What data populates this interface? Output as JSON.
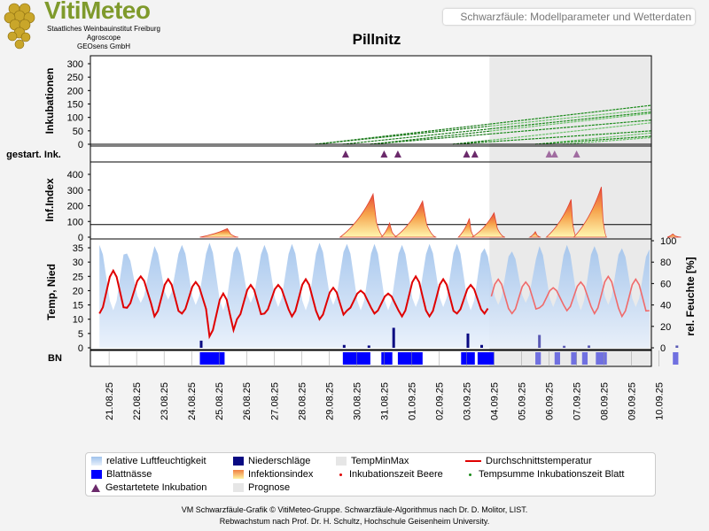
{
  "header": {
    "logo_title": "VitiMeteo",
    "logo_lines": [
      "Staatliches Weinbauinstitut Freiburg",
      "Agroscope",
      "GEOsens GmbH"
    ],
    "page_title": "Schwarzfäule: Modellparameter und Wetterdaten"
  },
  "footer": {
    "line1": "VM Schwarzfäule-Grafik © VitiMeteo-Gruppe. Schwarzfäule-Algorithmus nach Dr. D. Molitor, LIST.",
    "line2": "Rebwachstum nach Prof. Dr. H. Schultz, Hochschule Geisenheim University."
  },
  "legend": [
    {
      "label": "relative Luftfeuchtigkeit",
      "color": "#a9c8ee",
      "kind": "gradient-blue"
    },
    {
      "label": "Niederschläge",
      "color": "#0a0a82",
      "kind": "square"
    },
    {
      "label": "TempMinMax",
      "color": "#e6e6e6",
      "kind": "square"
    },
    {
      "label": "Durchschnittstemperatur",
      "color": "#e00000",
      "kind": "line"
    },
    {
      "label": "Blattnässe",
      "color": "#0000ff",
      "kind": "square"
    },
    {
      "label": "Infektionsindex",
      "color": "#f6b34a",
      "kind": "gradient-warm"
    },
    {
      "label": "Inkubationszeit Beere",
      "color": "#e00000",
      "kind": "dot"
    },
    {
      "label": "Tempsumme Inkubationszeit Blatt",
      "color": "#1a8a1a",
      "kind": "dot"
    },
    {
      "label": "Gestartetete Inkubation",
      "color": "#6b2a6b",
      "kind": "triangle"
    },
    {
      "label": "Prognose",
      "color": "#e6e6e6",
      "kind": "square"
    }
  ],
  "chart_data": {
    "type": "line",
    "title": "Pillnitz",
    "x_labels": [
      "21.08.25",
      "22.08.25",
      "23.08.25",
      "24.08.25",
      "25.08.25",
      "26.08.25",
      "27.08.25",
      "28.08.25",
      "29.08.25",
      "30.08.25",
      "31.08.25",
      "01.09.25",
      "02.09.25",
      "03.09.25",
      "04.09.25",
      "05.09.25",
      "06.09.25",
      "07.09.25",
      "08.09.25",
      "09.09.25",
      "10.09.25"
    ],
    "forecast_start_day": "04.09.25",
    "panels": {
      "incubation": {
        "ylabel": "Inkubationen",
        "ylim": [
          0,
          300
        ],
        "yticks": [
          0,
          50,
          100,
          150,
          200,
          250,
          300
        ],
        "series_start_days": [
          "28.08.25",
          "28.08.25",
          "29.08.25",
          "30.08.25",
          "30.08.25",
          "02.09.25",
          "02.09.25",
          "05.09.25",
          "05.09.25",
          "06.09.25"
        ],
        "end_values_10_09": [
          145,
          130,
          120,
          115,
          90,
          80,
          50,
          42,
          30,
          25
        ]
      },
      "started_incubation": {
        "ylabel": "gestart. Ink.",
        "events_day_offset": [
          8.6,
          10.0,
          10.5,
          13.0,
          13.3,
          16.0,
          16.2,
          17.0
        ]
      },
      "infection_index": {
        "ylabel": "Inf.Index",
        "ylim": [
          0,
          450
        ],
        "yticks": [
          0,
          100,
          200,
          300,
          400
        ],
        "threshold": 80,
        "peaks": [
          {
            "start": 3.3,
            "peak": 4.3,
            "end": 4.7,
            "value": 55
          },
          {
            "start": 8.4,
            "peak": 9.6,
            "end": 10.0,
            "value": 275
          },
          {
            "start": 9.9,
            "peak": 10.2,
            "end": 10.5,
            "value": 90
          },
          {
            "start": 10.4,
            "peak": 11.4,
            "end": 11.9,
            "value": 230
          },
          {
            "start": 12.7,
            "peak": 13.1,
            "end": 13.3,
            "value": 120
          },
          {
            "start": 13.2,
            "peak": 14.0,
            "end": 14.4,
            "value": 155
          },
          {
            "start": 15.3,
            "peak": 15.5,
            "end": 15.7,
            "value": 35
          },
          {
            "start": 15.9,
            "peak": 16.8,
            "end": 17.0,
            "value": 240
          },
          {
            "start": 16.9,
            "peak": 17.9,
            "end": 18.1,
            "value": 320
          },
          {
            "start": 20.3,
            "peak": 20.5,
            "end": 20.8,
            "value": 20
          }
        ]
      },
      "weather": {
        "ylabel_left": "Temp, Nied",
        "ylabel_right": "rel. Feuchte [%]",
        "ylim_left": [
          0,
          35
        ],
        "yticks_left": [
          0,
          5,
          10,
          15,
          20,
          25,
          30,
          35
        ],
        "ylim_right": [
          0,
          100
        ],
        "yticks_right": [
          0,
          20,
          40,
          60,
          80,
          100
        ],
        "mean_temp_daily_max": [
          27,
          25,
          24,
          23,
          19,
          22,
          22,
          24,
          21,
          20,
          19,
          25,
          24,
          22,
          24,
          23,
          21,
          23,
          25,
          24,
          26
        ],
        "mean_temp_daily_min": [
          12,
          14,
          11,
          12,
          4,
          10,
          12,
          11,
          10,
          13,
          12,
          11,
          11,
          12,
          12,
          12,
          14,
          13,
          12,
          11,
          13
        ],
        "humidity_daily_max": [
          96,
          88,
          95,
          96,
          98,
          95,
          96,
          97,
          98,
          97,
          97,
          96,
          97,
          97,
          93,
          90,
          95,
          96,
          95,
          93,
          92
        ],
        "humidity_daily_min": [
          35,
          42,
          45,
          40,
          35,
          42,
          38,
          35,
          40,
          35,
          35,
          38,
          38,
          35,
          40,
          42,
          38,
          35,
          40,
          38,
          36
        ],
        "precipitation_events": [
          {
            "day": 3.3,
            "value": 2.5
          },
          {
            "day": 8.5,
            "value": 1.0
          },
          {
            "day": 9.4,
            "value": 0.8
          },
          {
            "day": 10.3,
            "value": 7.0
          },
          {
            "day": 13.0,
            "value": 5.0
          },
          {
            "day": 13.5,
            "value": 1.0
          },
          {
            "day": 15.6,
            "value": 4.5
          },
          {
            "day": 16.5,
            "value": 0.7
          },
          {
            "day": 17.4,
            "value": 0.8
          },
          {
            "day": 20.6,
            "value": 0.8
          }
        ]
      },
      "leaf_wetness": {
        "ylabel": "BN",
        "intervals": [
          [
            3.3,
            4.2
          ],
          [
            8.5,
            9.5
          ],
          [
            9.9,
            10.3
          ],
          [
            10.5,
            11.4
          ],
          [
            12.8,
            13.3
          ],
          [
            13.4,
            14.0
          ],
          [
            15.5,
            15.7
          ],
          [
            16.2,
            16.4
          ],
          [
            16.8,
            17.0
          ],
          [
            17.2,
            17.4
          ],
          [
            17.7,
            18.1
          ],
          [
            20.5,
            20.7
          ]
        ]
      }
    }
  }
}
